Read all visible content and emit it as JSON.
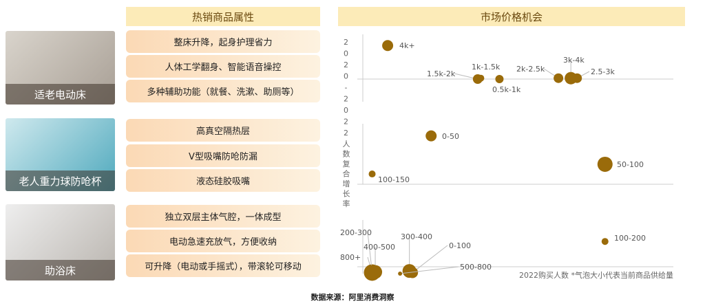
{
  "left_header": "热销商品属性",
  "right_header": "市场价格机会",
  "products": [
    {
      "name": "适老电动床",
      "attributes": [
        "整床升降，起身护理省力",
        "人体工学翻身、智能语音操控",
        "多种辅助功能（就餐、洗漱、助厕等）"
      ]
    },
    {
      "name": "老人重力球防呛杯",
      "attributes": [
        "高真空隔热层",
        "V型吸嘴防呛防漏",
        "液态硅胶吸嘴"
      ]
    },
    {
      "name": "助浴床",
      "attributes": [
        "独立双层主体气腔，一体成型",
        "电动急速充放气，方便收纳",
        "可升降（电动或手摇式），带滚轮可移动"
      ]
    }
  ],
  "source": "数据来源：阿里消费洞察",
  "colors": {
    "bubble": "#9a6b0a",
    "header_bg": "#fcebb8"
  },
  "chart_data": {
    "type": "scatter",
    "ylabel": "2020-2022人数复合增长率",
    "xlabel": "2022购买人数 *气泡大小代表当前商品供给量",
    "grid": false,
    "panels": [
      {
        "points": [
          {
            "label": "4k+",
            "x": 8,
            "y": 75,
            "size": 8
          },
          {
            "label": "1.5k-2k",
            "x": 37,
            "y": 0,
            "size": 7
          },
          {
            "label": "1k-1.5k",
            "x": 38,
            "y": 2,
            "size": 5
          },
          {
            "label": "0.5k-1k",
            "x": 44,
            "y": 0,
            "size": 6
          },
          {
            "label": "2k-2.5k",
            "x": 63,
            "y": 2,
            "size": 7
          },
          {
            "label": "3k-4k",
            "x": 67,
            "y": 2,
            "size": 9
          },
          {
            "label": "2.5-3k",
            "x": 69,
            "y": 2,
            "size": 7
          }
        ]
      },
      {
        "points": [
          {
            "label": "0-50",
            "x": 22,
            "y": 80,
            "size": 8
          },
          {
            "label": "100-150",
            "x": 3,
            "y": 17,
            "size": 5
          },
          {
            "label": "50-100",
            "x": 78,
            "y": 33,
            "size": 11
          }
        ]
      },
      {
        "points": [
          {
            "label": "100-200",
            "x": 78,
            "y": 60,
            "size": 5
          },
          {
            "label": "800+",
            "x": 3,
            "y": 2,
            "size": 12
          },
          {
            "label": "200-300",
            "x": 3,
            "y": 3,
            "size": 10
          },
          {
            "label": "400-500",
            "x": 4,
            "y": 3,
            "size": 10
          },
          {
            "label": "300-400",
            "x": 15,
            "y": 5,
            "size": 10
          },
          {
            "label": "0-100",
            "x": 16,
            "y": 2,
            "size": 8
          },
          {
            "label": "500-800",
            "x": 12,
            "y": 0,
            "size": 3
          }
        ]
      }
    ]
  }
}
